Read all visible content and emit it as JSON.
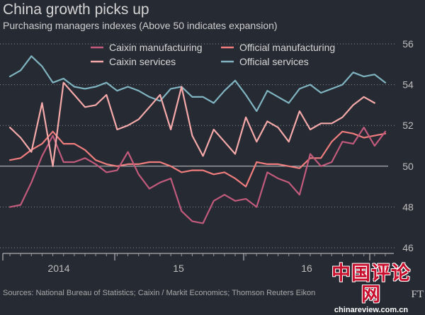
{
  "chart_data": {
    "type": "line",
    "title": "China growth picks up",
    "subtitle": "Purchasing managers indexes (Above 50 indicates expansion)",
    "source": "Sources: National Bureau of Statistics; Caixin / Markit Economics; Thomson Reuters Eikon",
    "x_tick_labels": [
      "2014",
      "15",
      "16"
    ],
    "y_ticks": [
      46,
      48,
      50,
      52,
      54,
      56
    ],
    "ylim": [
      46,
      56
    ],
    "reference_line": 50,
    "legend_position": "top-left",
    "series": [
      {
        "name": "Caixin manufacturing",
        "color": "#c25a7c",
        "values": [
          48.0,
          48.1,
          49.2,
          50.5,
          51.5,
          50.2,
          50.2,
          50.4,
          50.1,
          49.7,
          49.8,
          50.7,
          49.6,
          48.9,
          49.2,
          49.4,
          47.8,
          47.3,
          47.2,
          48.3,
          48.6,
          48.3,
          48.4,
          48.0,
          49.7,
          49.4,
          49.2,
          48.6,
          50.6,
          50.0,
          50.2,
          51.2,
          51.1,
          51.9,
          51.0,
          51.7
        ]
      },
      {
        "name": "Official manufacturing",
        "color": "#f07d7d",
        "values": [
          50.3,
          50.4,
          50.8,
          51.1,
          51.7,
          51.1,
          51.1,
          50.8,
          50.3,
          50.1,
          50.0,
          50.1,
          50.1,
          50.2,
          50.2,
          50.0,
          49.7,
          49.8,
          49.8,
          49.6,
          49.7,
          49.4,
          49.0,
          50.2,
          50.1,
          50.1,
          50.0,
          49.9,
          50.4,
          50.4,
          51.2,
          51.7,
          51.6,
          51.4,
          51.5,
          51.6
        ]
      },
      {
        "name": "Caixin services",
        "color": "#f5a9a9",
        "values": [
          51.9,
          51.4,
          50.7,
          53.1,
          50.0,
          54.1,
          53.5,
          52.9,
          53.0,
          53.5,
          51.8,
          52.0,
          52.3,
          52.9,
          53.5,
          51.8,
          53.9,
          51.5,
          50.5,
          51.8,
          51.2,
          50.6,
          52.4,
          51.2,
          52.2,
          51.9,
          51.2,
          52.7,
          51.8,
          52.1,
          52.1,
          52.4,
          53.0,
          53.4,
          53.1
        ]
      },
      {
        "name": "Official services",
        "color": "#7fb4c0",
        "values": [
          54.4,
          54.7,
          55.4,
          54.9,
          54.1,
          54.3,
          53.9,
          53.8,
          53.9,
          54.1,
          53.7,
          53.9,
          53.7,
          53.4,
          53.2,
          53.8,
          53.9,
          53.4,
          53.4,
          53.1,
          53.7,
          54.2,
          53.5,
          52.7,
          53.7,
          53.4,
          53.1,
          53.8,
          54.0,
          53.6,
          53.8,
          54.0,
          54.6,
          54.4,
          54.5,
          54.1
        ]
      }
    ]
  },
  "watermark": {
    "chinese": "中国评论网",
    "url": "chinareview.com.cn"
  },
  "brand_mark": "FT"
}
